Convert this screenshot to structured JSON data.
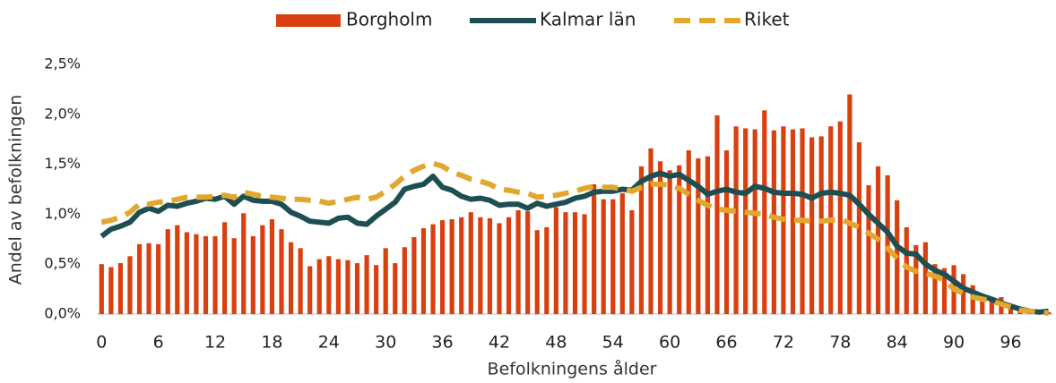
{
  "chart_data": {
    "type": "bar",
    "x_label": "Befolkningens ålder",
    "y_label": "Andel av befolkningen",
    "x": [
      0,
      1,
      2,
      3,
      4,
      5,
      6,
      7,
      8,
      9,
      10,
      11,
      12,
      13,
      14,
      15,
      16,
      17,
      18,
      19,
      20,
      21,
      22,
      23,
      24,
      25,
      26,
      27,
      28,
      29,
      30,
      31,
      32,
      33,
      34,
      35,
      36,
      37,
      38,
      39,
      40,
      41,
      42,
      43,
      44,
      45,
      46,
      47,
      48,
      49,
      50,
      51,
      52,
      53,
      54,
      55,
      56,
      57,
      58,
      59,
      60,
      61,
      62,
      63,
      64,
      65,
      66,
      67,
      68,
      69,
      70,
      71,
      72,
      73,
      74,
      75,
      76,
      77,
      78,
      79,
      80,
      81,
      82,
      83,
      84,
      85,
      86,
      87,
      88,
      89,
      90,
      91,
      92,
      93,
      94,
      95,
      96,
      97,
      98,
      99,
      100
    ],
    "xlim": [
      -0.5,
      100.5
    ],
    "xticks": [
      0,
      6,
      12,
      18,
      24,
      30,
      36,
      42,
      48,
      54,
      60,
      66,
      72,
      78,
      84,
      90,
      96
    ],
    "ylim": [
      0,
      2.5
    ],
    "yticks": [
      {
        "value": 0,
        "label": "0,0%"
      },
      {
        "value": 0.5,
        "label": "0,5%"
      },
      {
        "value": 1,
        "label": "1,0%"
      },
      {
        "value": 1.5,
        "label": "1,5%"
      },
      {
        "value": 2,
        "label": "2,0%"
      },
      {
        "value": 2.5,
        "label": "2,5%"
      }
    ],
    "grid": false,
    "legend": "top",
    "series": [
      {
        "name": "Borgholm",
        "type": "bar",
        "color": "#d9400f",
        "values": [
          0.5,
          0.47,
          0.51,
          0.58,
          0.7,
          0.71,
          0.7,
          0.85,
          0.89,
          0.82,
          0.8,
          0.78,
          0.78,
          0.92,
          0.76,
          1.01,
          0.78,
          0.89,
          0.95,
          0.85,
          0.72,
          0.66,
          0.48,
          0.55,
          0.58,
          0.55,
          0.54,
          0.51,
          0.59,
          0.49,
          0.66,
          0.51,
          0.67,
          0.77,
          0.86,
          0.9,
          0.94,
          0.95,
          0.97,
          1.02,
          0.97,
          0.96,
          0.91,
          0.97,
          1.04,
          1.03,
          0.84,
          0.87,
          1.07,
          1.02,
          1.02,
          1.0,
          1.3,
          1.15,
          1.15,
          1.21,
          1.04,
          1.48,
          1.66,
          1.53,
          1.44,
          1.49,
          1.64,
          1.56,
          1.58,
          1.99,
          1.64,
          1.88,
          1.86,
          1.85,
          2.04,
          1.84,
          1.88,
          1.85,
          1.86,
          1.77,
          1.78,
          1.88,
          1.93,
          2.2,
          1.72,
          1.29,
          1.48,
          1.39,
          1.14,
          0.87,
          0.69,
          0.72,
          0.5,
          0.46,
          0.49,
          0.4,
          0.29,
          0.19,
          0.17,
          0.17,
          0.1,
          0.07,
          0.05,
          0.03,
          0.02
        ]
      },
      {
        "name": "Kalmar län",
        "type": "line",
        "color": "#1d4f52",
        "dashed": false,
        "values": [
          0.78,
          0.85,
          0.88,
          0.92,
          1.02,
          1.06,
          1.03,
          1.09,
          1.08,
          1.11,
          1.13,
          1.16,
          1.15,
          1.18,
          1.1,
          1.18,
          1.14,
          1.13,
          1.13,
          1.1,
          1.02,
          0.98,
          0.93,
          0.92,
          0.91,
          0.96,
          0.97,
          0.91,
          0.9,
          0.98,
          1.05,
          1.12,
          1.25,
          1.28,
          1.3,
          1.38,
          1.27,
          1.24,
          1.18,
          1.15,
          1.16,
          1.14,
          1.09,
          1.1,
          1.1,
          1.06,
          1.11,
          1.08,
          1.1,
          1.12,
          1.16,
          1.18,
          1.22,
          1.23,
          1.23,
          1.25,
          1.24,
          1.33,
          1.38,
          1.41,
          1.38,
          1.4,
          1.34,
          1.28,
          1.2,
          1.23,
          1.25,
          1.22,
          1.21,
          1.28,
          1.26,
          1.22,
          1.21,
          1.21,
          1.2,
          1.16,
          1.21,
          1.22,
          1.21,
          1.19,
          1.1,
          1.0,
          0.91,
          0.82,
          0.68,
          0.61,
          0.6,
          0.5,
          0.44,
          0.4,
          0.33,
          0.26,
          0.22,
          0.18,
          0.15,
          0.11,
          0.08,
          0.05,
          0.03,
          0.02,
          0.03
        ]
      },
      {
        "name": "Riket",
        "type": "line",
        "color": "#e3a72f",
        "dashed": true,
        "values": [
          0.92,
          0.94,
          0.97,
          1.02,
          1.1,
          1.1,
          1.12,
          1.13,
          1.15,
          1.17,
          1.17,
          1.17,
          1.18,
          1.19,
          1.17,
          1.22,
          1.2,
          1.18,
          1.17,
          1.16,
          1.15,
          1.15,
          1.14,
          1.13,
          1.11,
          1.13,
          1.15,
          1.17,
          1.15,
          1.17,
          1.23,
          1.3,
          1.38,
          1.44,
          1.48,
          1.51,
          1.48,
          1.42,
          1.39,
          1.35,
          1.33,
          1.3,
          1.25,
          1.24,
          1.22,
          1.21,
          1.17,
          1.18,
          1.19,
          1.21,
          1.23,
          1.26,
          1.28,
          1.27,
          1.27,
          1.25,
          1.23,
          1.27,
          1.3,
          1.3,
          1.29,
          1.26,
          1.2,
          1.14,
          1.09,
          1.05,
          1.04,
          1.03,
          1.02,
          1.01,
          1.0,
          0.97,
          0.95,
          0.94,
          0.94,
          0.93,
          0.93,
          0.94,
          0.95,
          0.91,
          0.87,
          0.81,
          0.75,
          0.66,
          0.56,
          0.47,
          0.43,
          0.41,
          0.38,
          0.34,
          0.25,
          0.21,
          0.17,
          0.15,
          0.13,
          0.1,
          0.07,
          0.04,
          0.03,
          0.02,
          0.01
        ]
      }
    ]
  }
}
